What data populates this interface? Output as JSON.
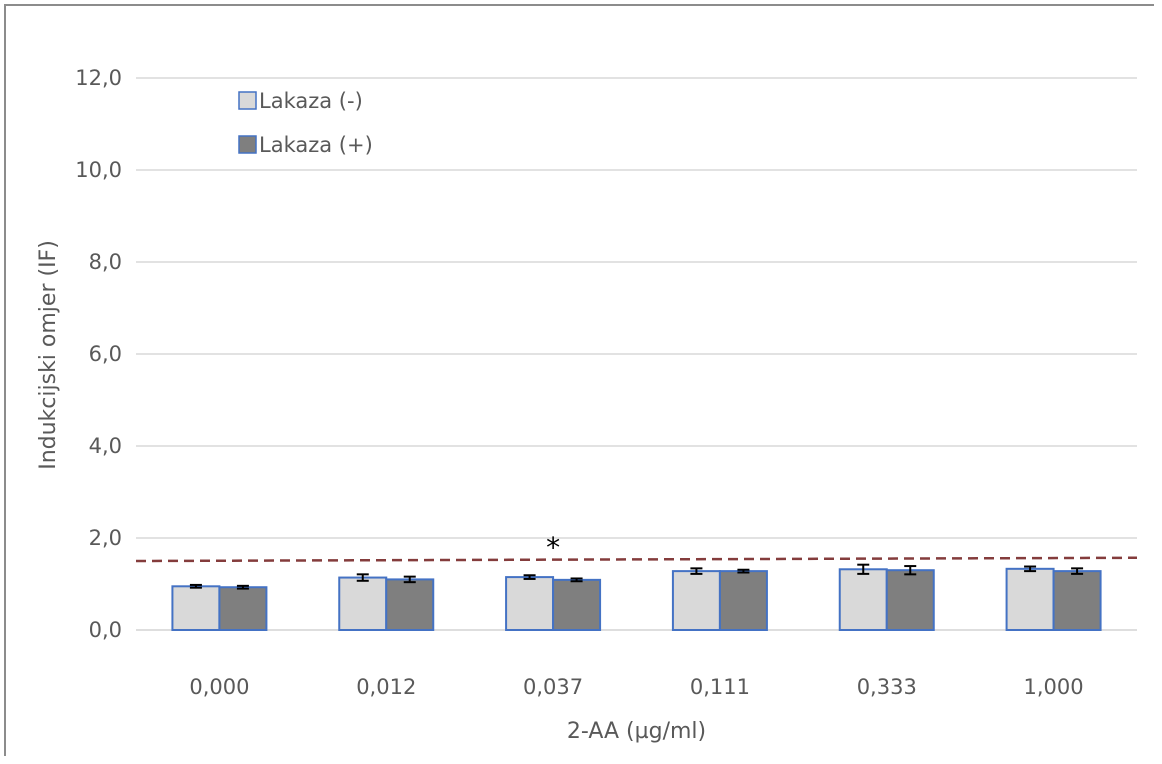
{
  "chart_data": {
    "type": "bar",
    "title": "",
    "xlabel": "2-AA (µg/ml)",
    "ylabel": "Indukcijski omjer (IF)",
    "categories": [
      "0,000",
      "0,012",
      "0,037",
      "0,111",
      "0,333",
      "1,000"
    ],
    "ylim": [
      0,
      12
    ],
    "yticks": [
      "0,0",
      "2,0",
      "4,0",
      "6,0",
      "8,0",
      "10,0",
      "12,0"
    ],
    "grid": true,
    "legend_position": "top-left",
    "series": [
      {
        "name": "Lakaza (-)",
        "color": "#d9d9d9",
        "values": [
          0.95,
          1.14,
          1.15,
          1.28,
          1.32,
          1.33
        ],
        "errors": [
          0.03,
          0.07,
          0.04,
          0.06,
          0.1,
          0.05
        ]
      },
      {
        "name": "Lakaza (+)",
        "color": "#7f7f7f",
        "values": [
          0.93,
          1.1,
          1.09,
          1.28,
          1.3,
          1.28
        ],
        "errors": [
          0.03,
          0.06,
          0.03,
          0.03,
          0.09,
          0.06
        ]
      }
    ],
    "reference_line": {
      "color": "#843c3c",
      "y_start": 1.5,
      "y_end": 1.57
    },
    "annotations": [
      {
        "text": "*",
        "category": "0,037"
      }
    ],
    "bar_border_color": "#4472c4"
  }
}
